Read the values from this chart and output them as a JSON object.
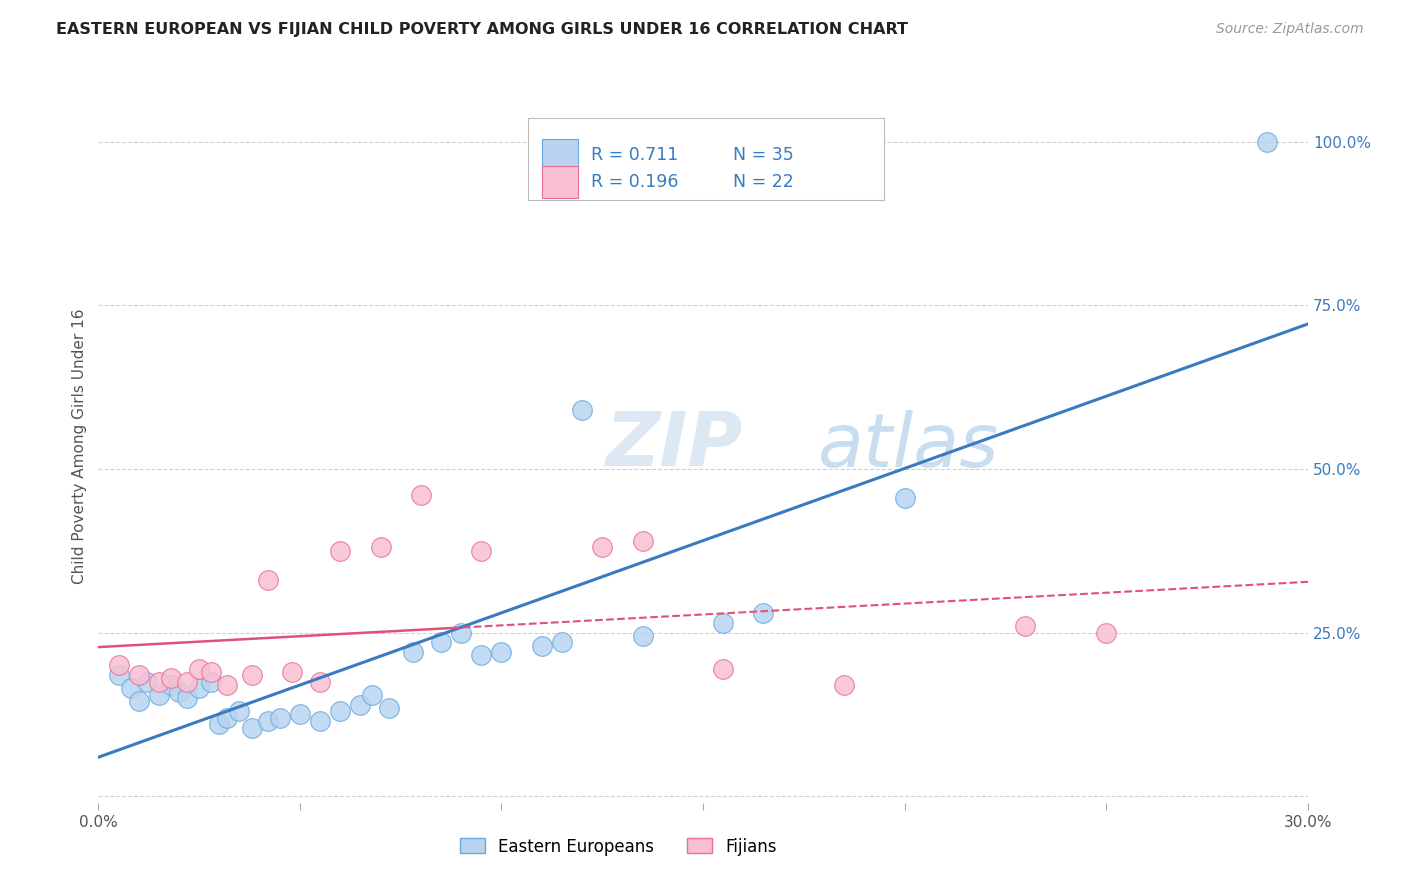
{
  "title": "EASTERN EUROPEAN VS FIJIAN CHILD POVERTY AMONG GIRLS UNDER 16 CORRELATION CHART",
  "source": "Source: ZipAtlas.com",
  "ylabel": "Child Poverty Among Girls Under 16",
  "xlim": [
    0.0,
    0.3
  ],
  "ylim": [
    -0.01,
    1.08
  ],
  "xtick_positions": [
    0.0,
    0.05,
    0.1,
    0.15,
    0.2,
    0.25,
    0.3
  ],
  "xticklabels": [
    "0.0%",
    "",
    "",
    "",
    "",
    "",
    "30.0%"
  ],
  "right_yticks": [
    0.0,
    0.25,
    0.5,
    0.75,
    1.0
  ],
  "right_yticklabels": [
    "",
    "25.0%",
    "50.0%",
    "75.0%",
    "100.0%"
  ],
  "r_eastern": 0.711,
  "n_eastern": 35,
  "r_fijian": 0.196,
  "n_fijian": 22,
  "eastern_fill": "#b8d4f0",
  "eastern_edge": "#6aaae0",
  "fijian_fill": "#f8c0d0",
  "fijian_edge": "#e87098",
  "trend_eastern_color": "#3a7abf",
  "trend_fijian_color": "#e0507a",
  "background_color": "#ffffff",
  "grid_color": "#cccccc",
  "legend_text_color": "#3a7abf",
  "watermark_color": "#dde8f5",
  "eastern_x": [
    0.005,
    0.008,
    0.01,
    0.012,
    0.015,
    0.018,
    0.02,
    0.022,
    0.025,
    0.028,
    0.03,
    0.032,
    0.035,
    0.038,
    0.042,
    0.045,
    0.05,
    0.055,
    0.06,
    0.065,
    0.068,
    0.072,
    0.078,
    0.085,
    0.09,
    0.095,
    0.1,
    0.11,
    0.115,
    0.12,
    0.135,
    0.155,
    0.165,
    0.2,
    0.29
  ],
  "eastern_y": [
    0.185,
    0.165,
    0.145,
    0.175,
    0.155,
    0.17,
    0.16,
    0.15,
    0.165,
    0.175,
    0.11,
    0.12,
    0.13,
    0.105,
    0.115,
    0.12,
    0.125,
    0.115,
    0.13,
    0.14,
    0.155,
    0.135,
    0.22,
    0.235,
    0.25,
    0.215,
    0.22,
    0.23,
    0.235,
    0.59,
    0.245,
    0.265,
    0.28,
    0.455,
    1.0
  ],
  "fijian_x": [
    0.005,
    0.01,
    0.015,
    0.018,
    0.022,
    0.025,
    0.028,
    0.032,
    0.038,
    0.042,
    0.048,
    0.055,
    0.06,
    0.07,
    0.08,
    0.095,
    0.125,
    0.135,
    0.155,
    0.185,
    0.23,
    0.25
  ],
  "fijian_y": [
    0.2,
    0.185,
    0.175,
    0.18,
    0.175,
    0.195,
    0.19,
    0.17,
    0.185,
    0.33,
    0.19,
    0.175,
    0.375,
    0.38,
    0.46,
    0.375,
    0.38,
    0.39,
    0.195,
    0.17,
    0.26,
    0.25
  ]
}
